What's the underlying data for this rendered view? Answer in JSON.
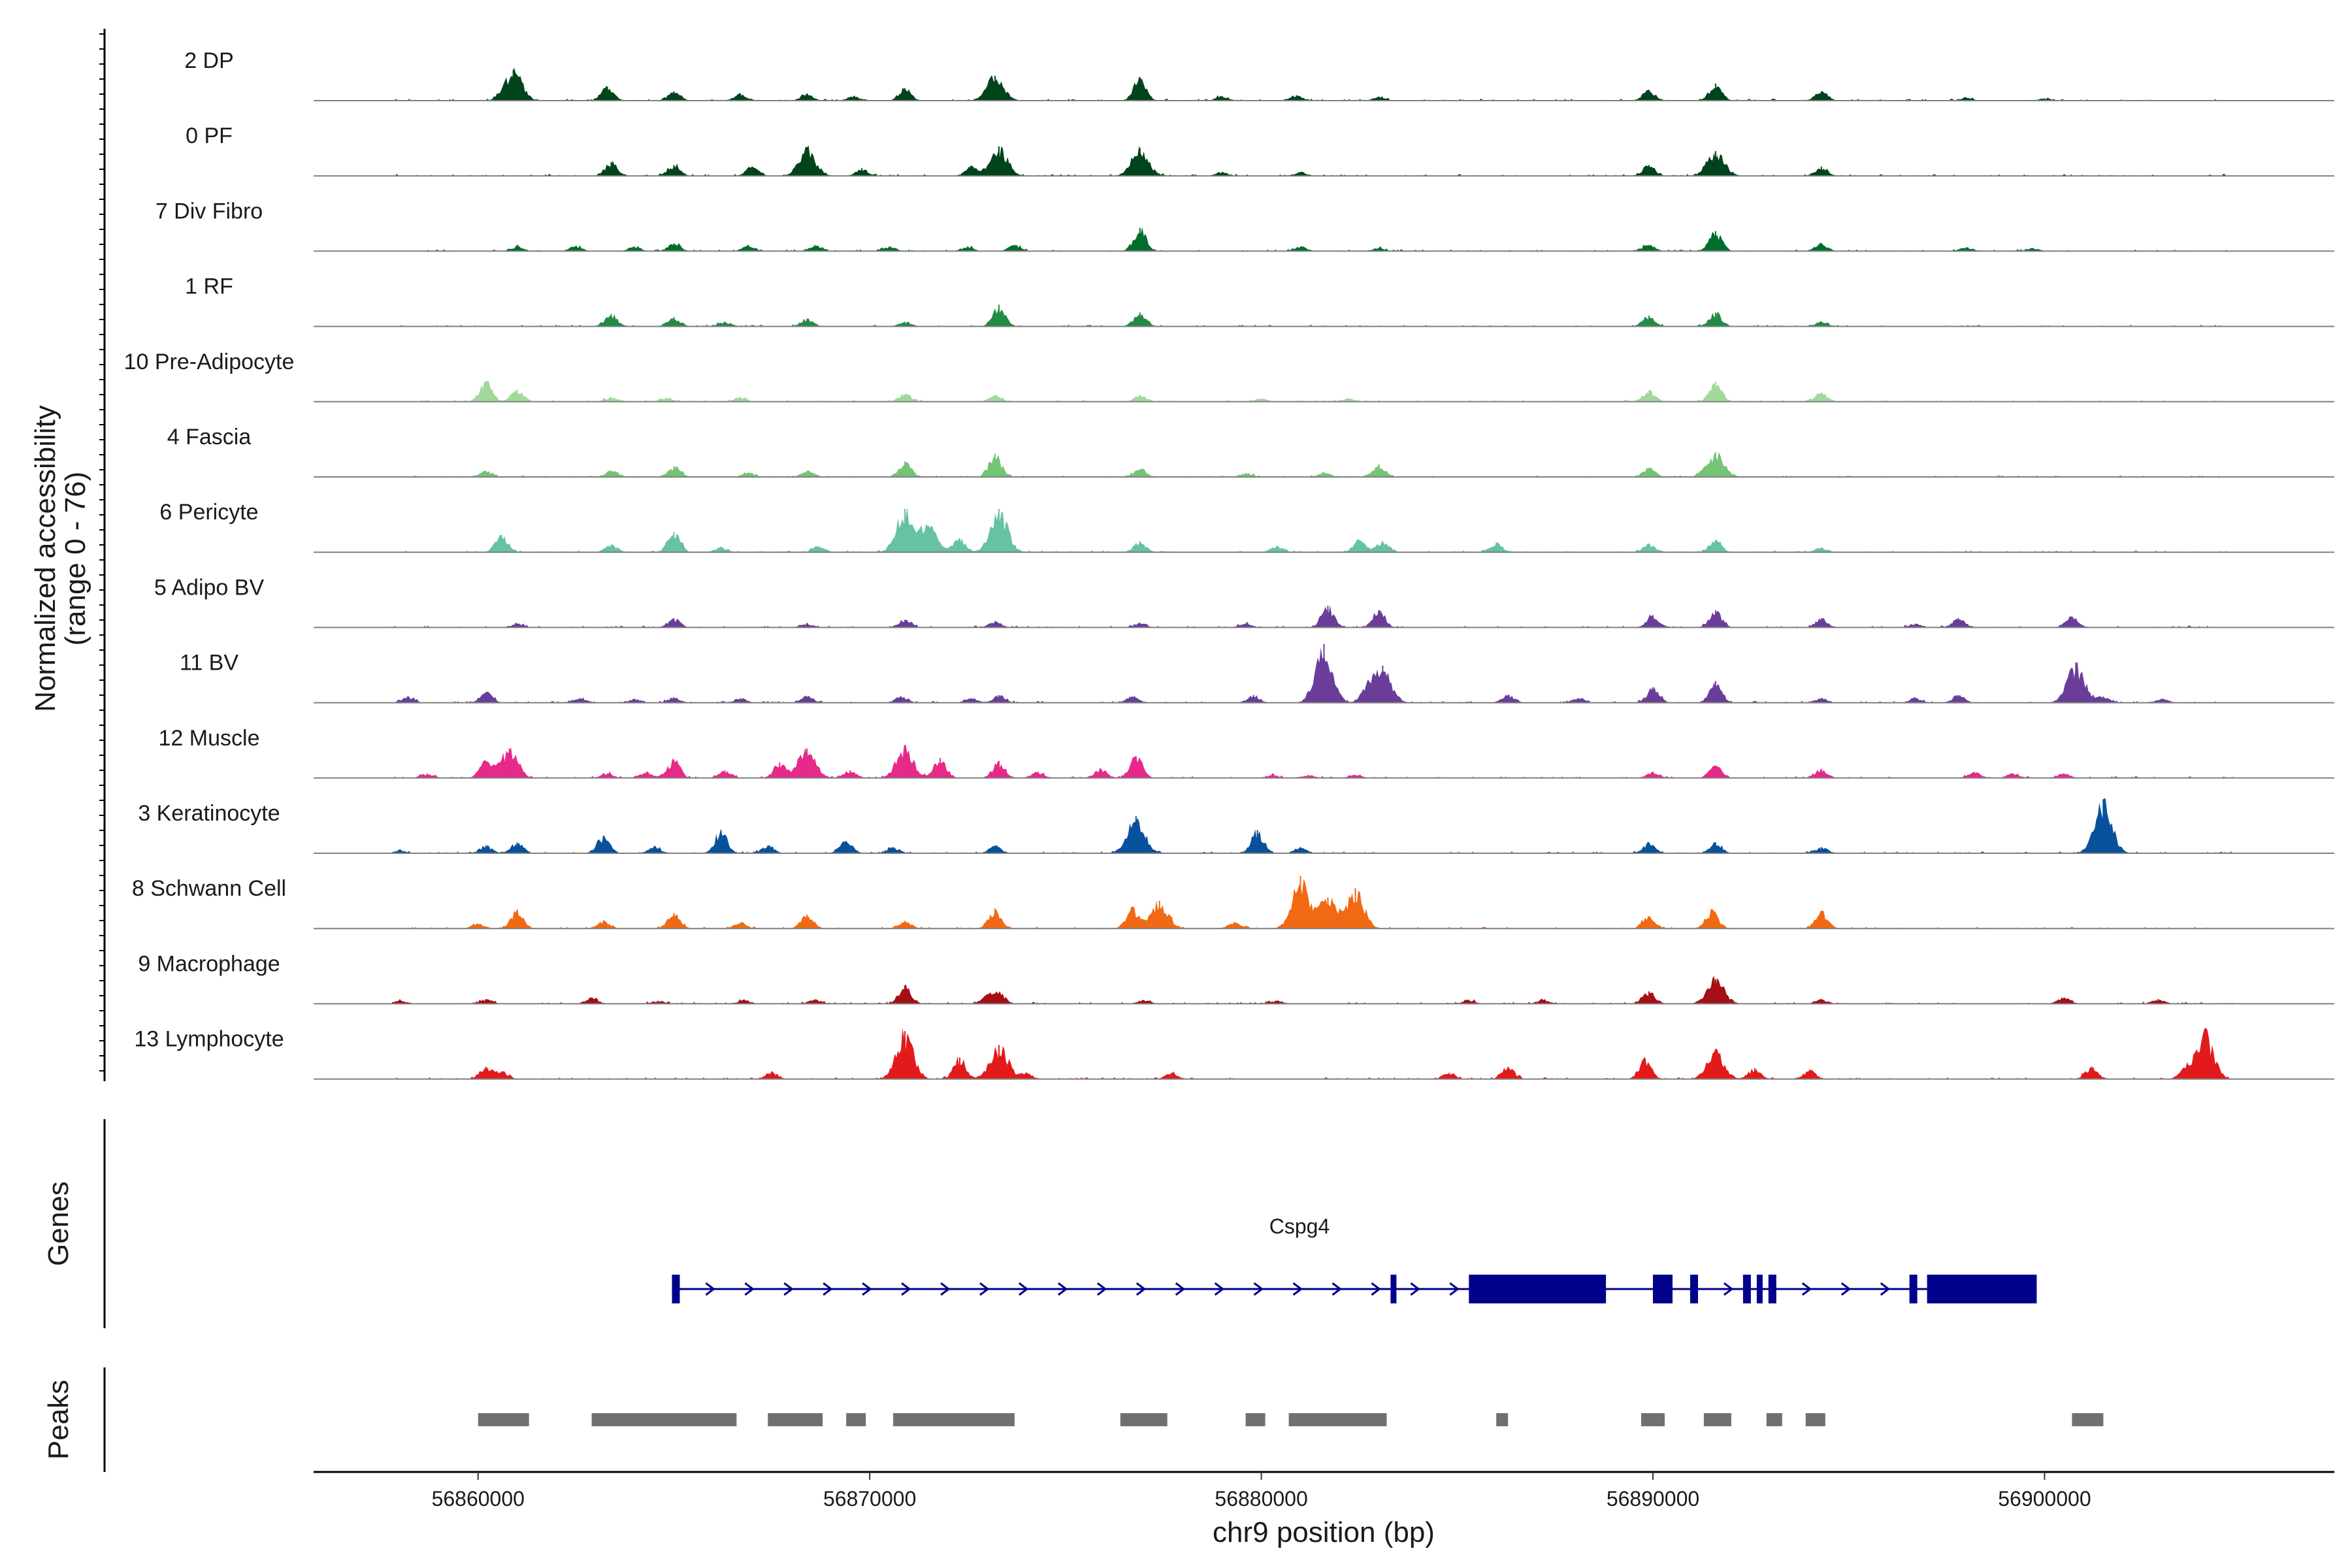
{
  "chart_data": {
    "type": "area",
    "title": "",
    "y_axis_title_line1": "Normalized accessibility",
    "y_axis_title_line2": "(range 0 - 76)",
    "y_range": [
      0,
      76
    ],
    "xlabel": "chr9 position (bp)",
    "xlim": [
      56855800,
      56907400
    ],
    "x_ticks": [
      56860000,
      56870000,
      56880000,
      56890000,
      56900000
    ],
    "x_tick_labels": [
      "56860000",
      "56870000",
      "56880000",
      "56890000",
      "56900000"
    ],
    "tracks": [
      {
        "name": "2 DP",
        "color": "#00441b",
        "peaks": [
          [
            56860900,
            40
          ],
          [
            56863300,
            18
          ],
          [
            56865000,
            12
          ],
          [
            56866700,
            9
          ],
          [
            56868400,
            9
          ],
          [
            56869600,
            6
          ],
          [
            56870900,
            16
          ],
          [
            56873200,
            32
          ],
          [
            56876900,
            30
          ],
          [
            56879000,
            6
          ],
          [
            56880900,
            7
          ],
          [
            56883000,
            5
          ],
          [
            56889900,
            14
          ],
          [
            56891600,
            22
          ],
          [
            56894300,
            12
          ],
          [
            56898000,
            4
          ],
          [
            56900000,
            3
          ]
        ]
      },
      {
        "name": "0 PF",
        "color": "#00441b",
        "peaks": [
          [
            56863400,
            18
          ],
          [
            56865000,
            14
          ],
          [
            56867000,
            12
          ],
          [
            56868400,
            36
          ],
          [
            56869800,
            10
          ],
          [
            56872600,
            12
          ],
          [
            56873300,
            38
          ],
          [
            56876900,
            36
          ],
          [
            56879000,
            5
          ],
          [
            56881000,
            5
          ],
          [
            56889900,
            14
          ],
          [
            56891600,
            32
          ],
          [
            56894300,
            12
          ]
        ]
      },
      {
        "name": "7 Div Fibro",
        "color": "#006d2c",
        "peaks": [
          [
            56861000,
            6
          ],
          [
            56862500,
            7
          ],
          [
            56864000,
            6
          ],
          [
            56865000,
            10
          ],
          [
            56866900,
            8
          ],
          [
            56868600,
            8
          ],
          [
            56870500,
            6
          ],
          [
            56872500,
            6
          ],
          [
            56873700,
            8
          ],
          [
            56876900,
            30
          ],
          [
            56881000,
            6
          ],
          [
            56883000,
            4
          ],
          [
            56889900,
            8
          ],
          [
            56891600,
            26
          ],
          [
            56894300,
            10
          ],
          [
            56898000,
            5
          ],
          [
            56899700,
            4
          ]
        ]
      },
      {
        "name": "1 RF",
        "color": "#238b45",
        "peaks": [
          [
            56863400,
            16
          ],
          [
            56865000,
            12
          ],
          [
            56866300,
            6
          ],
          [
            56868400,
            10
          ],
          [
            56870900,
            6
          ],
          [
            56873300,
            28
          ],
          [
            56876900,
            18
          ],
          [
            56889900,
            14
          ],
          [
            56891600,
            18
          ],
          [
            56894300,
            6
          ]
        ]
      },
      {
        "name": "10 Pre-Adipocyte",
        "color": "#a1d99b",
        "peaks": [
          [
            56860200,
            26
          ],
          [
            56861000,
            16
          ],
          [
            56863400,
            6
          ],
          [
            56864800,
            5
          ],
          [
            56866700,
            6
          ],
          [
            56870900,
            10
          ],
          [
            56873200,
            8
          ],
          [
            56876900,
            8
          ],
          [
            56880000,
            4
          ],
          [
            56882200,
            4
          ],
          [
            56889900,
            14
          ],
          [
            56891600,
            26
          ],
          [
            56894300,
            12
          ]
        ]
      },
      {
        "name": "4 Fascia",
        "color": "#74c476",
        "peaks": [
          [
            56860200,
            8
          ],
          [
            56863400,
            8
          ],
          [
            56865000,
            14
          ],
          [
            56866900,
            6
          ],
          [
            56868400,
            8
          ],
          [
            56870900,
            20
          ],
          [
            56873200,
            30
          ],
          [
            56876900,
            10
          ],
          [
            56879600,
            5
          ],
          [
            56881600,
            6
          ],
          [
            56883000,
            16
          ],
          [
            56889900,
            12
          ],
          [
            56891600,
            32
          ]
        ]
      },
      {
        "name": "6 Pericyte",
        "color": "#66c2a4",
        "peaks": [
          [
            56860600,
            22
          ],
          [
            56863400,
            10
          ],
          [
            56865000,
            26
          ],
          [
            56866200,
            6
          ],
          [
            56868700,
            8
          ],
          [
            56870900,
            56
          ],
          [
            56871500,
            34
          ],
          [
            56872300,
            18
          ],
          [
            56873300,
            56
          ],
          [
            56876900,
            14
          ],
          [
            56880400,
            8
          ],
          [
            56882500,
            16
          ],
          [
            56883100,
            14
          ],
          [
            56886000,
            12
          ],
          [
            56889900,
            10
          ],
          [
            56891600,
            16
          ],
          [
            56894300,
            6
          ]
        ]
      },
      {
        "name": "5 Adipo BV",
        "color": "#6a3d9a",
        "peaks": [
          [
            56861000,
            5
          ],
          [
            56865000,
            12
          ],
          [
            56868400,
            5
          ],
          [
            56870900,
            10
          ],
          [
            56873200,
            8
          ],
          [
            56876900,
            6
          ],
          [
            56879600,
            5
          ],
          [
            56881700,
            28
          ],
          [
            56883000,
            22
          ],
          [
            56890000,
            16
          ],
          [
            56891600,
            22
          ],
          [
            56894300,
            12
          ],
          [
            56896700,
            5
          ],
          [
            56897800,
            12
          ],
          [
            56900700,
            14
          ]
        ]
      },
      {
        "name": "11 BV",
        "color": "#6a3d9a",
        "peaks": [
          [
            56858200,
            8
          ],
          [
            56860200,
            14
          ],
          [
            56862600,
            6
          ],
          [
            56864000,
            5
          ],
          [
            56865000,
            7
          ],
          [
            56866700,
            6
          ],
          [
            56868400,
            8
          ],
          [
            56870800,
            8
          ],
          [
            56872600,
            6
          ],
          [
            56873300,
            10
          ],
          [
            56876700,
            8
          ],
          [
            56879800,
            10
          ],
          [
            56881600,
            76
          ],
          [
            56882700,
            20
          ],
          [
            56883100,
            48
          ],
          [
            56886300,
            10
          ],
          [
            56888100,
            6
          ],
          [
            56890000,
            20
          ],
          [
            56891600,
            28
          ],
          [
            56894300,
            6
          ],
          [
            56896700,
            6
          ],
          [
            56897800,
            10
          ],
          [
            56900800,
            52
          ],
          [
            56901500,
            8
          ],
          [
            56903000,
            5
          ]
        ]
      },
      {
        "name": "12 Muscle",
        "color": "#e7298a",
        "peaks": [
          [
            56858700,
            6
          ],
          [
            56860200,
            22
          ],
          [
            56860800,
            38
          ],
          [
            56863300,
            6
          ],
          [
            56864300,
            8
          ],
          [
            56865000,
            24
          ],
          [
            56866300,
            10
          ],
          [
            56867700,
            20
          ],
          [
            56868400,
            38
          ],
          [
            56869500,
            10
          ],
          [
            56870900,
            40
          ],
          [
            56871800,
            26
          ],
          [
            56873300,
            22
          ],
          [
            56874300,
            8
          ],
          [
            56875900,
            12
          ],
          [
            56876800,
            28
          ],
          [
            56880300,
            4
          ],
          [
            56881200,
            4
          ],
          [
            56882400,
            4
          ],
          [
            56890000,
            8
          ],
          [
            56891600,
            16
          ],
          [
            56894300,
            12
          ],
          [
            56898200,
            8
          ],
          [
            56899200,
            6
          ],
          [
            56900500,
            6
          ]
        ]
      },
      {
        "name": "3 Keratinocyte",
        "color": "#08519c",
        "peaks": [
          [
            56858000,
            4
          ],
          [
            56860200,
            10
          ],
          [
            56861000,
            14
          ],
          [
            56863200,
            22
          ],
          [
            56864500,
            8
          ],
          [
            56866200,
            30
          ],
          [
            56867400,
            10
          ],
          [
            56869400,
            16
          ],
          [
            56870600,
            8
          ],
          [
            56873200,
            10
          ],
          [
            56876800,
            48
          ],
          [
            56879900,
            30
          ],
          [
            56881000,
            8
          ],
          [
            56889900,
            14
          ],
          [
            56891600,
            14
          ],
          [
            56894300,
            8
          ],
          [
            56901500,
            70
          ]
        ]
      },
      {
        "name": "8 Schwann Cell",
        "color": "#f16913",
        "peaks": [
          [
            56860000,
            6
          ],
          [
            56861000,
            24
          ],
          [
            56863200,
            10
          ],
          [
            56865000,
            20
          ],
          [
            56866700,
            8
          ],
          [
            56868400,
            18
          ],
          [
            56870900,
            10
          ],
          [
            56873200,
            26
          ],
          [
            56876700,
            26
          ],
          [
            56877400,
            36
          ],
          [
            56879300,
            8
          ],
          [
            56881000,
            68
          ],
          [
            56881700,
            40
          ],
          [
            56882400,
            52
          ],
          [
            56889900,
            16
          ],
          [
            56891500,
            24
          ],
          [
            56894300,
            22
          ]
        ]
      },
      {
        "name": "9 Macrophage",
        "color": "#a50f15",
        "peaks": [
          [
            56858000,
            4
          ],
          [
            56860200,
            6
          ],
          [
            56862900,
            8
          ],
          [
            56864600,
            4
          ],
          [
            56866800,
            5
          ],
          [
            56868600,
            6
          ],
          [
            56870900,
            24
          ],
          [
            56873000,
            10
          ],
          [
            56873300,
            14
          ],
          [
            56877000,
            5
          ],
          [
            56880400,
            4
          ],
          [
            56885300,
            5
          ],
          [
            56887200,
            5
          ],
          [
            56889900,
            16
          ],
          [
            56891600,
            32
          ],
          [
            56894300,
            6
          ],
          [
            56900500,
            8
          ],
          [
            56902900,
            6
          ]
        ]
      },
      {
        "name": "13 Lymphocyte",
        "color": "#e31a1c",
        "peaks": [
          [
            56860200,
            16
          ],
          [
            56860600,
            10
          ],
          [
            56867500,
            10
          ],
          [
            56870900,
            62
          ],
          [
            56872300,
            28
          ],
          [
            56873300,
            44
          ],
          [
            56874000,
            8
          ],
          [
            56877700,
            8
          ],
          [
            56884800,
            8
          ],
          [
            56886300,
            16
          ],
          [
            56889800,
            26
          ],
          [
            56891600,
            36
          ],
          [
            56892600,
            14
          ],
          [
            56894000,
            12
          ],
          [
            56901200,
            16
          ],
          [
            56903600,
            14
          ],
          [
            56904100,
            60
          ]
        ]
      }
    ],
    "genes": [
      {
        "name": "Cspg4",
        "strand": "+",
        "start": 56864950,
        "end": 56899800,
        "exons": [
          [
            56864950,
            56865150
          ],
          [
            56883300,
            56883450
          ],
          [
            56885300,
            56888800
          ],
          [
            56890000,
            56890500
          ],
          [
            56890950,
            56891150
          ],
          [
            56892300,
            56892500
          ],
          [
            56892650,
            56892800
          ],
          [
            56892950,
            56893150
          ],
          [
            56896550,
            56896750
          ],
          [
            56897000,
            56899800
          ]
        ]
      }
    ],
    "peaks_track": [
      [
        56860000,
        56861300
      ],
      [
        56862900,
        56866600
      ],
      [
        56867400,
        56868800
      ],
      [
        56869400,
        56869900
      ],
      [
        56870600,
        56873700
      ],
      [
        56876400,
        56877600
      ],
      [
        56879600,
        56880100
      ],
      [
        56880700,
        56883200
      ],
      [
        56886000,
        56886300
      ],
      [
        56889700,
        56890300
      ],
      [
        56891300,
        56892000
      ],
      [
        56892900,
        56893300
      ],
      [
        56893900,
        56894400
      ],
      [
        56900700,
        56901500
      ]
    ]
  },
  "panels": {
    "genes_label": "Genes",
    "peaks_label": "Peaks"
  },
  "colors": {
    "gene": "#00008b",
    "peak_bar": "#707070",
    "baseline": "#808080",
    "axis": "#000000"
  }
}
